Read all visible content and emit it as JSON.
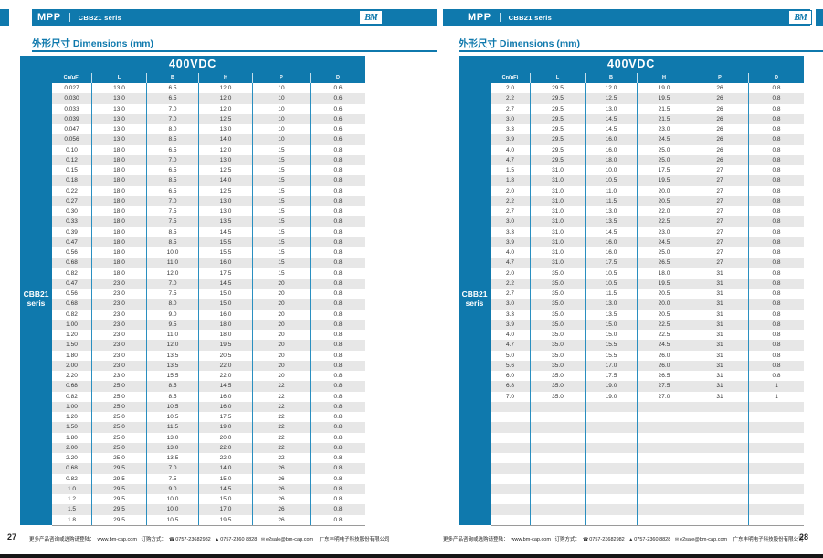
{
  "brand": {
    "logo_text": "BM"
  },
  "colors": {
    "accent": "#0f79ad",
    "stripe": "#e7e7e7"
  },
  "icons": {
    "phone": "☎",
    "fax": "▲",
    "email": "✉"
  },
  "footer": {
    "more_info": "更多产品咨询或选购请登陆：",
    "website": "www.bm-cap.com",
    "order_method": "订购方式：",
    "phone": "0757-23682982",
    "fax": "0757-2360 8828",
    "email": "e2sale@bm-cap.com",
    "company": "广东丰明电子科技股份有限公司"
  },
  "pages": [
    {
      "page_number": "27",
      "header": {
        "series_type": "MPP",
        "series_name": "CBB21 seris"
      },
      "section_title": "外形尺寸 Dimensions (mm)",
      "table": {
        "voltage": "400VDC",
        "side_label_line1": "CBB21",
        "side_label_line2": "seris",
        "columns": [
          "Cn(μF)",
          "L",
          "B",
          "H",
          "P",
          "D"
        ],
        "empty_rows": 0,
        "rows": [
          [
            "0.027",
            "13.0",
            "6.5",
            "12.0",
            "10",
            "0.6"
          ],
          [
            "0.030",
            "13.0",
            "6.5",
            "12.0",
            "10",
            "0.6"
          ],
          [
            "0.033",
            "13.0",
            "7.0",
            "12.0",
            "10",
            "0.6"
          ],
          [
            "0.039",
            "13.0",
            "7.0",
            "12.5",
            "10",
            "0.6"
          ],
          [
            "0.047",
            "13.0",
            "8.0",
            "13.0",
            "10",
            "0.6"
          ],
          [
            "0.056",
            "13.0",
            "8.5",
            "14.0",
            "10",
            "0.6"
          ],
          [
            "0.10",
            "18.0",
            "6.5",
            "12.0",
            "15",
            "0.8"
          ],
          [
            "0.12",
            "18.0",
            "7.0",
            "13.0",
            "15",
            "0.8"
          ],
          [
            "0.15",
            "18.0",
            "6.5",
            "12.5",
            "15",
            "0.8"
          ],
          [
            "0.18",
            "18.0",
            "8.5",
            "14.0",
            "15",
            "0.8"
          ],
          [
            "0.22",
            "18.0",
            "6.5",
            "12.5",
            "15",
            "0.8"
          ],
          [
            "0.27",
            "18.0",
            "7.0",
            "13.0",
            "15",
            "0.8"
          ],
          [
            "0.30",
            "18.0",
            "7.5",
            "13.0",
            "15",
            "0.8"
          ],
          [
            "0.33",
            "18.0",
            "7.5",
            "13.5",
            "15",
            "0.8"
          ],
          [
            "0.39",
            "18.0",
            "8.5",
            "14.5",
            "15",
            "0.8"
          ],
          [
            "0.47",
            "18.0",
            "8.5",
            "15.5",
            "15",
            "0.8"
          ],
          [
            "0.56",
            "18.0",
            "10.0",
            "15.5",
            "15",
            "0.8"
          ],
          [
            "0.68",
            "18.0",
            "11.0",
            "16.0",
            "15",
            "0.8"
          ],
          [
            "0.82",
            "18.0",
            "12.0",
            "17.5",
            "15",
            "0.8"
          ],
          [
            "0.47",
            "23.0",
            "7.0",
            "14.5",
            "20",
            "0.8"
          ],
          [
            "0.56",
            "23.0",
            "7.5",
            "15.0",
            "20",
            "0.8"
          ],
          [
            "0.68",
            "23.0",
            "8.0",
            "15.0",
            "20",
            "0.8"
          ],
          [
            "0.82",
            "23.0",
            "9.0",
            "16.0",
            "20",
            "0.8"
          ],
          [
            "1.00",
            "23.0",
            "9.5",
            "18.0",
            "20",
            "0.8"
          ],
          [
            "1.20",
            "23.0",
            "11.0",
            "18.0",
            "20",
            "0.8"
          ],
          [
            "1.50",
            "23.0",
            "12.0",
            "19.5",
            "20",
            "0.8"
          ],
          [
            "1.80",
            "23.0",
            "13.5",
            "20.5",
            "20",
            "0.8"
          ],
          [
            "2.00",
            "23.0",
            "13.5",
            "22.0",
            "20",
            "0.8"
          ],
          [
            "2.20",
            "23.0",
            "15.5",
            "22.0",
            "20",
            "0.8"
          ],
          [
            "0.68",
            "25.0",
            "8.5",
            "14.5",
            "22",
            "0.8"
          ],
          [
            "0.82",
            "25.0",
            "8.5",
            "16.0",
            "22",
            "0.8"
          ],
          [
            "1.00",
            "25.0",
            "10.5",
            "16.0",
            "22",
            "0.8"
          ],
          [
            "1.20",
            "25.0",
            "10.5",
            "17.5",
            "22",
            "0.8"
          ],
          [
            "1.50",
            "25.0",
            "11.5",
            "19.0",
            "22",
            "0.8"
          ],
          [
            "1.80",
            "25.0",
            "13.0",
            "20.0",
            "22",
            "0.8"
          ],
          [
            "2.00",
            "25.0",
            "13.0",
            "22.0",
            "22",
            "0.8"
          ],
          [
            "2.20",
            "25.0",
            "13.5",
            "22.0",
            "22",
            "0.8"
          ],
          [
            "0.68",
            "29.5",
            "7.0",
            "14.0",
            "26",
            "0.8"
          ],
          [
            "0.82",
            "29.5",
            "7.5",
            "15.0",
            "26",
            "0.8"
          ],
          [
            "1.0",
            "29.5",
            "9.0",
            "14.5",
            "26",
            "0.8"
          ],
          [
            "1.2",
            "29.5",
            "10.0",
            "15.0",
            "26",
            "0.8"
          ],
          [
            "1.5",
            "29.5",
            "10.0",
            "17.0",
            "26",
            "0.8"
          ],
          [
            "1.8",
            "29.5",
            "10.5",
            "19.5",
            "26",
            "0.8"
          ]
        ]
      }
    },
    {
      "page_number": "28",
      "header": {
        "series_type": "MPP",
        "series_name": "CBB21 seris"
      },
      "section_title": "外形尺寸 Dimensions (mm)",
      "table": {
        "voltage": "400VDC",
        "side_label_line1": "CBB21",
        "side_label_line2": "seris",
        "columns": [
          "Cn(μF)",
          "L",
          "B",
          "H",
          "P",
          "D"
        ],
        "empty_rows": 12,
        "rows": [
          [
            "2.0",
            "29.5",
            "12.0",
            "19.0",
            "26",
            "0.8"
          ],
          [
            "2.2",
            "29.5",
            "12.5",
            "19.5",
            "26",
            "0.8"
          ],
          [
            "2.7",
            "29.5",
            "13.0",
            "21.5",
            "26",
            "0.8"
          ],
          [
            "3.0",
            "29.5",
            "14.5",
            "21.5",
            "26",
            "0.8"
          ],
          [
            "3.3",
            "29.5",
            "14.5",
            "23.0",
            "26",
            "0.8"
          ],
          [
            "3.9",
            "29.5",
            "16.0",
            "24.5",
            "26",
            "0.8"
          ],
          [
            "4.0",
            "29.5",
            "16.0",
            "25.0",
            "26",
            "0.8"
          ],
          [
            "4.7",
            "29.5",
            "18.0",
            "25.0",
            "26",
            "0.8"
          ],
          [
            "1.5",
            "31.0",
            "10.0",
            "17.5",
            "27",
            "0.8"
          ],
          [
            "1.8",
            "31.0",
            "10.5",
            "19.5",
            "27",
            "0.8"
          ],
          [
            "2.0",
            "31.0",
            "11.0",
            "20.0",
            "27",
            "0.8"
          ],
          [
            "2.2",
            "31.0",
            "11.5",
            "20.5",
            "27",
            "0.8"
          ],
          [
            "2.7",
            "31.0",
            "13.0",
            "22.0",
            "27",
            "0.8"
          ],
          [
            "3.0",
            "31.0",
            "13.5",
            "22.5",
            "27",
            "0.8"
          ],
          [
            "3.3",
            "31.0",
            "14.5",
            "23.0",
            "27",
            "0.8"
          ],
          [
            "3.9",
            "31.0",
            "16.0",
            "24.5",
            "27",
            "0.8"
          ],
          [
            "4.0",
            "31.0",
            "16.0",
            "25.0",
            "27",
            "0.8"
          ],
          [
            "4.7",
            "31.0",
            "17.5",
            "26.5",
            "27",
            "0.8"
          ],
          [
            "2.0",
            "35.0",
            "10.5",
            "18.0",
            "31",
            "0.8"
          ],
          [
            "2.2",
            "35.0",
            "10.5",
            "19.5",
            "31",
            "0.8"
          ],
          [
            "2.7",
            "35.0",
            "11.5",
            "20.5",
            "31",
            "0.8"
          ],
          [
            "3.0",
            "35.0",
            "13.0",
            "20.0",
            "31",
            "0.8"
          ],
          [
            "3.3",
            "35.0",
            "13.5",
            "20.5",
            "31",
            "0.8"
          ],
          [
            "3.9",
            "35.0",
            "15.0",
            "22.5",
            "31",
            "0.8"
          ],
          [
            "4.0",
            "35.0",
            "15.0",
            "22.5",
            "31",
            "0.8"
          ],
          [
            "4.7",
            "35.0",
            "15.5",
            "24.5",
            "31",
            "0.8"
          ],
          [
            "5.0",
            "35.0",
            "15.5",
            "26.0",
            "31",
            "0.8"
          ],
          [
            "5.6",
            "35.0",
            "17.0",
            "26.0",
            "31",
            "0.8"
          ],
          [
            "6.0",
            "35.0",
            "17.5",
            "26.5",
            "31",
            "0.8"
          ],
          [
            "6.8",
            "35.0",
            "19.0",
            "27.5",
            "31",
            "1"
          ],
          [
            "7.0",
            "35.0",
            "19.0",
            "27.0",
            "31",
            "1"
          ]
        ]
      }
    }
  ]
}
